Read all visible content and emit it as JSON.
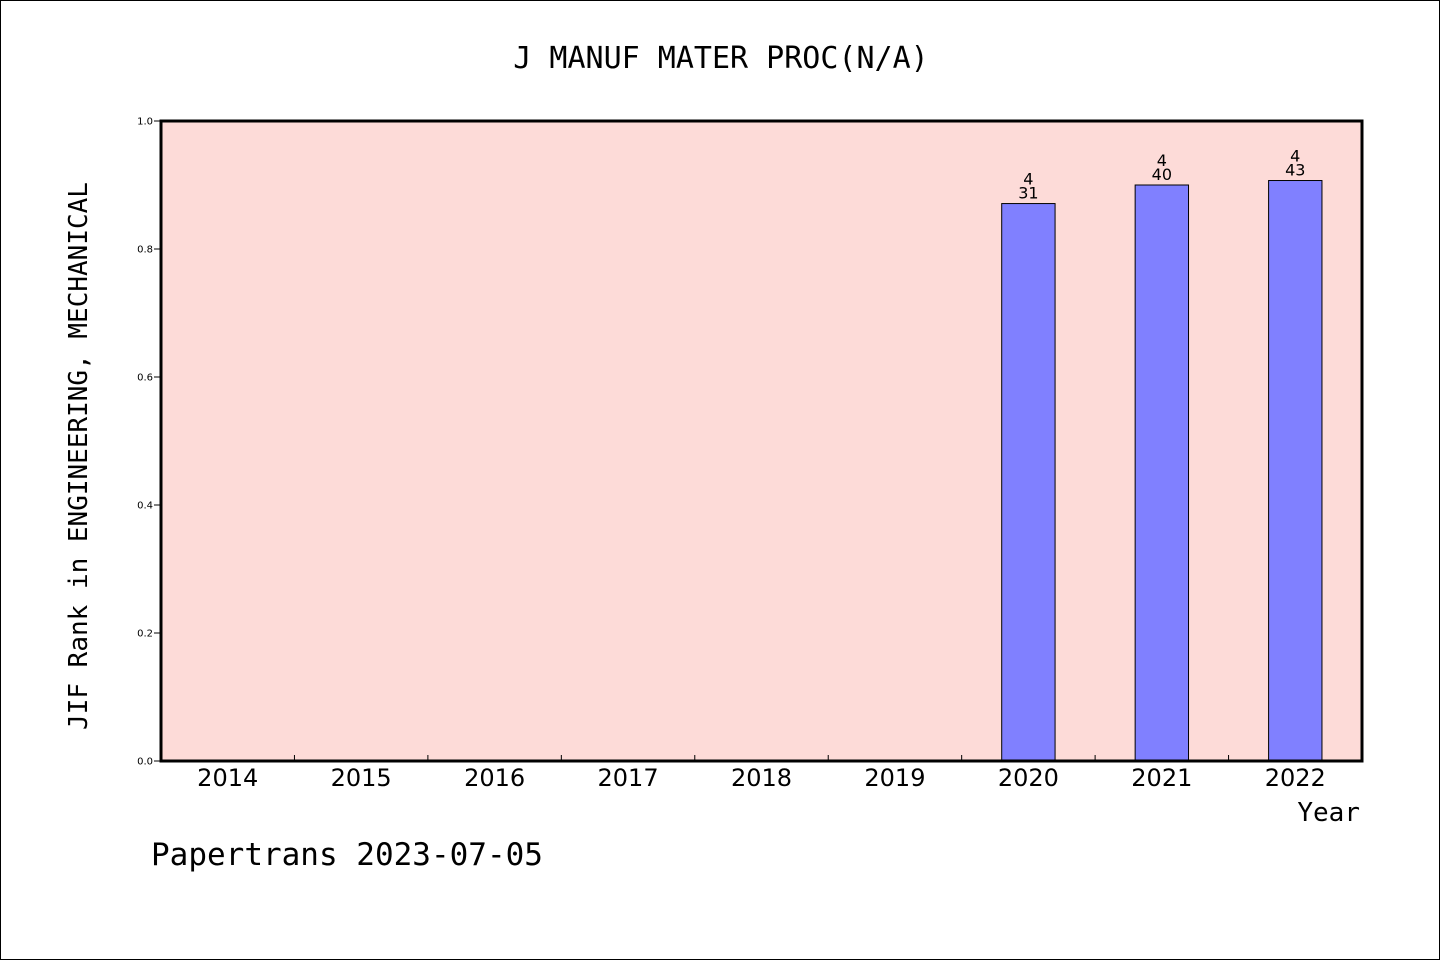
{
  "chart_data": {
    "type": "bar",
    "title": "J MANUF MATER PROC(N/A)",
    "xlabel": "Year",
    "ylabel": "JIF Rank in ENGINEERING, MECHANICAL",
    "ylim": [
      0,
      1.0
    ],
    "yticks": [
      "0.0",
      "0.2",
      "0.4",
      "0.6",
      "0.8",
      "1.0"
    ],
    "categories": [
      "2014",
      "2015",
      "2016",
      "2017",
      "2018",
      "2019",
      "2020",
      "2021",
      "2022"
    ],
    "values": [
      null,
      null,
      null,
      null,
      null,
      null,
      0.871,
      0.9,
      0.907
    ],
    "bar_labels_top": [
      "",
      "",
      "",
      "",
      "",
      "",
      "4",
      "4",
      "4"
    ],
    "bar_labels_bottom": [
      "",
      "",
      "",
      "",
      "",
      "",
      "31",
      "40",
      "43"
    ],
    "grid": false,
    "colors": {
      "plot_background": "#fddbd8",
      "bar_fill": "#8080ff",
      "bar_stroke": "#000000"
    }
  },
  "footer": {
    "watermark": "Papertrans 2023-07-05"
  }
}
